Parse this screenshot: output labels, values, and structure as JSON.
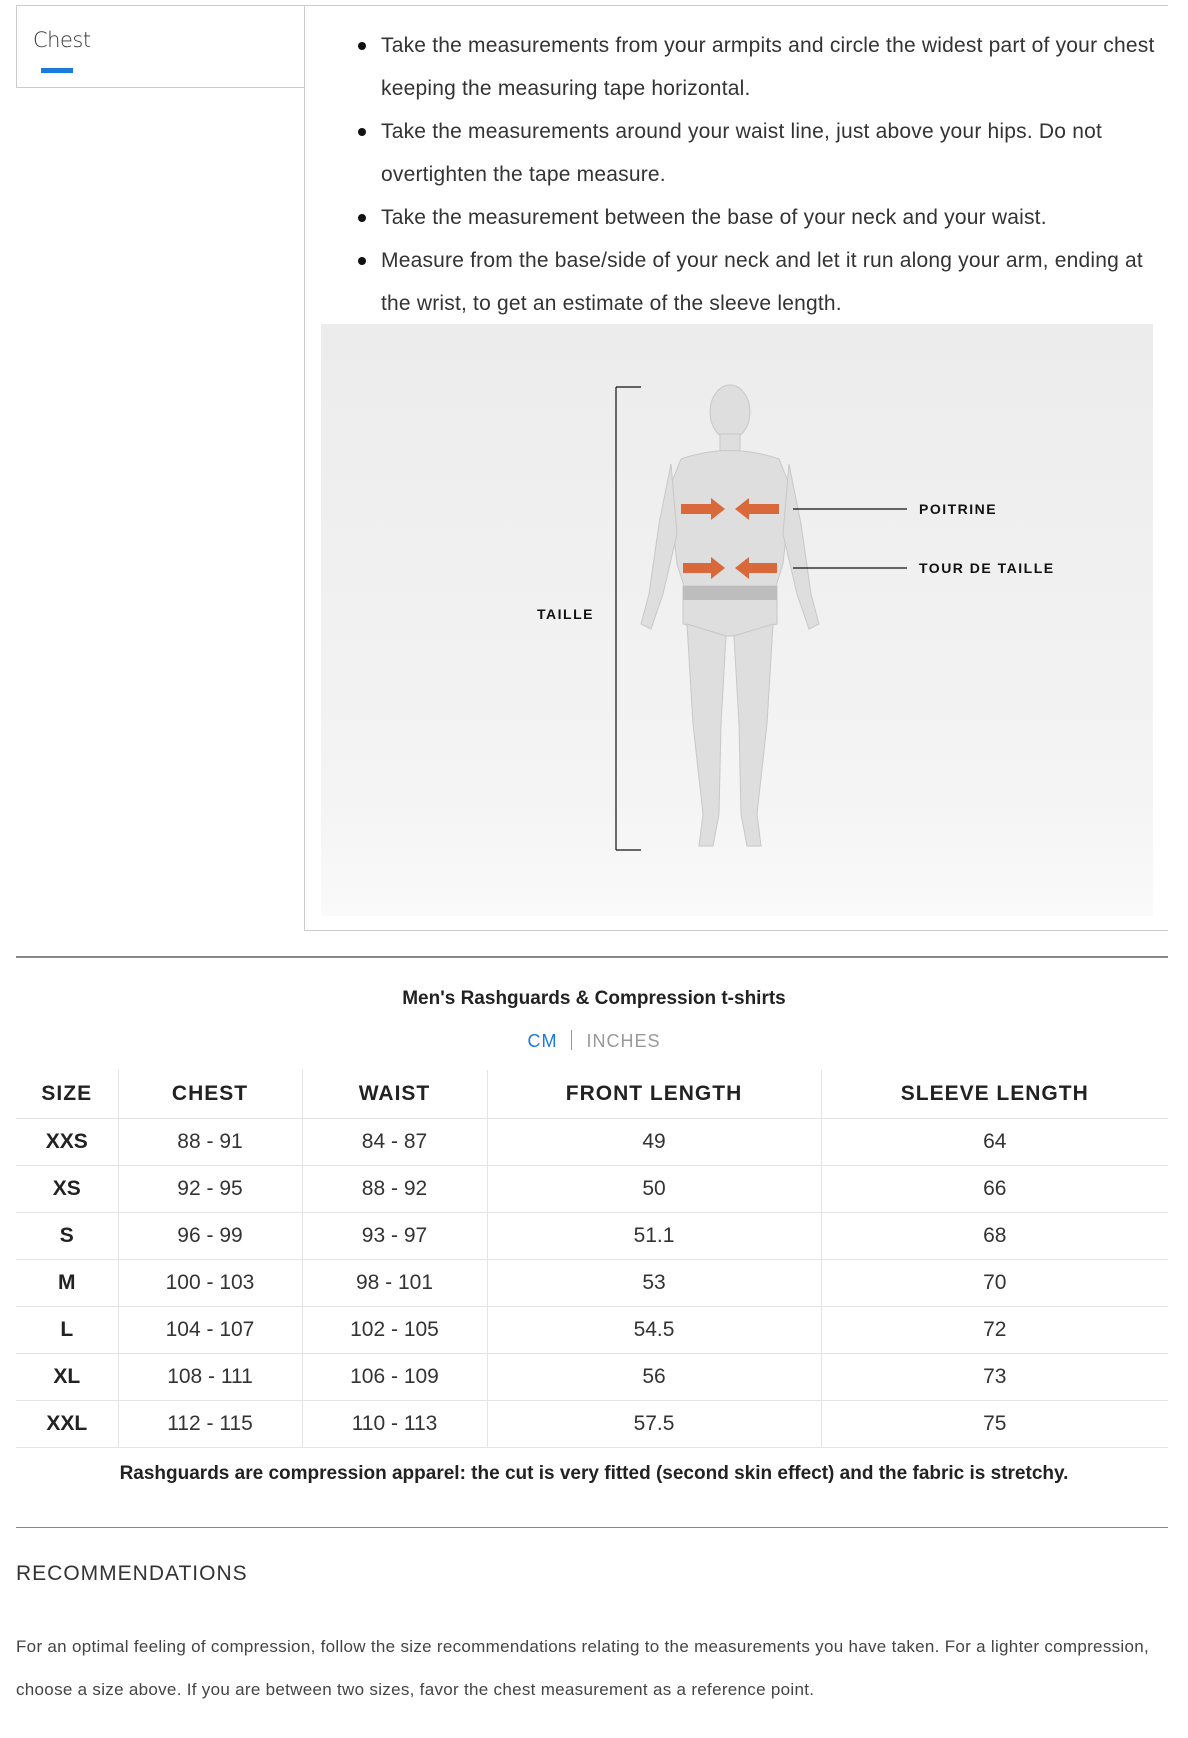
{
  "tab": {
    "label": "Chest",
    "accent": "#1b7bd8"
  },
  "instructions": [
    "Take the measurements from your armpits and circle the widest part of your chest keeping the measuring tape horizontal.",
    "Take the measurements around your waist line, just above your hips. Do not overtighten the tape measure.",
    "Take the measurement between the base of your neck and your waist.",
    "Measure from the base/side of your neck and let it run along your arm, ending at the wrist, to get an estimate of the sleeve length."
  ],
  "figure": {
    "chest_label": "POITRINE",
    "waist_label": "TOUR DE TAILLE",
    "height_label": "TAILLE",
    "arrow_color": "#d9683a"
  },
  "size_chart": {
    "title": "Men's Rashguards & Compression t-shirts",
    "units": {
      "cm": "CM",
      "inches": "INCHES",
      "selected": "CM"
    },
    "headers": [
      "SIZE",
      "CHEST",
      "WAIST",
      "FRONT LENGTH",
      "SLEEVE LENGTH"
    ],
    "rows": [
      [
        "XXS",
        "88 - 91",
        "84 - 87",
        "49",
        "64"
      ],
      [
        "XS",
        "92 - 95",
        "88 - 92",
        "50",
        "66"
      ],
      [
        "S",
        "96 - 99",
        "93 - 97",
        "51.1",
        "68"
      ],
      [
        "M",
        "100 - 103",
        "98 - 101",
        "53",
        "70"
      ],
      [
        "L",
        "104 - 107",
        "102 - 105",
        "54.5",
        "72"
      ],
      [
        "XL",
        "108 - 111",
        "106 - 109",
        "56",
        "73"
      ],
      [
        "XXL",
        "112 - 115",
        "110 - 113",
        "57.5",
        "75"
      ]
    ],
    "note": "Rashguards are compression apparel: the cut is very fitted (second skin effect) and the fabric is stretchy."
  },
  "recommendations": {
    "heading": "RECOMMENDATIONS",
    "text": "For an optimal feeling of compression, follow the size recommendations relating to the measurements you have taken. For a lighter compression, choose a size above. If you are between two sizes, favor the chest measurement as a reference point."
  }
}
